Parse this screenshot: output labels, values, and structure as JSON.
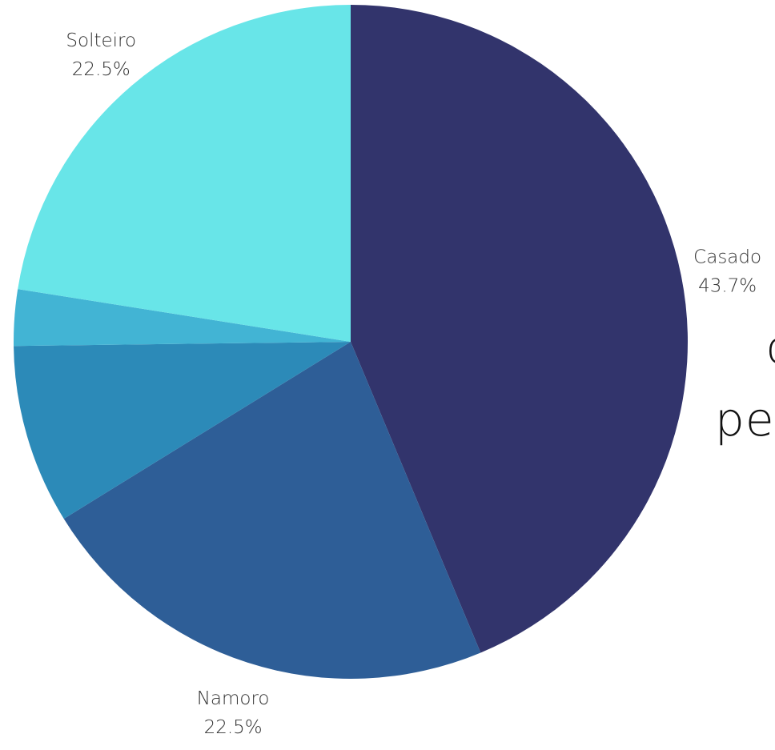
{
  "chart_data": {
    "type": "pie",
    "start_angle_deg": 0,
    "direction": "clockwise",
    "slices": [
      {
        "label": "Casado",
        "value": 43.7,
        "display": "43.7%",
        "color": "#32346C"
      },
      {
        "label": "Namoro",
        "value": 22.5,
        "display": "22.5%",
        "color": "#2E5E97"
      },
      {
        "label": "",
        "value": 8.6,
        "display": "",
        "color": "#2C8AB8"
      },
      {
        "label": "",
        "value": 2.7,
        "display": "",
        "color": "#42B4D4"
      },
      {
        "label": "Solteiro",
        "value": 22.5,
        "display": "22.5%",
        "color": "#68E5E8"
      }
    ]
  },
  "side_text": {
    "line1": "c",
    "line2": "pe"
  }
}
